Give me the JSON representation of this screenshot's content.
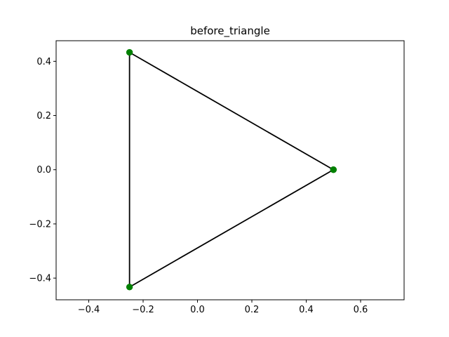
{
  "chart_data": {
    "type": "line",
    "title": "before_triangle",
    "xlabel": "",
    "ylabel": "",
    "xlim": [
      -0.52,
      0.76
    ],
    "ylim": [
      -0.48,
      0.476
    ],
    "xticks": [
      {
        "value": -0.4,
        "label": "−0.4"
      },
      {
        "value": -0.2,
        "label": "−0.2"
      },
      {
        "value": 0.0,
        "label": "0.0"
      },
      {
        "value": 0.2,
        "label": "0.2"
      },
      {
        "value": 0.4,
        "label": "0.4"
      },
      {
        "value": 0.6,
        "label": "0.6"
      }
    ],
    "yticks": [
      {
        "value": -0.4,
        "label": "−0.4"
      },
      {
        "value": -0.2,
        "label": "−0.2"
      },
      {
        "value": 0.0,
        "label": "0.0"
      },
      {
        "value": 0.2,
        "label": "0.2"
      },
      {
        "value": 0.4,
        "label": "0.4"
      }
    ],
    "grid": false,
    "series": [
      {
        "x": [
          0.5,
          -0.25,
          -0.25,
          0.5
        ],
        "y": [
          0.0,
          0.433,
          -0.433,
          0.0
        ],
        "line_color": "#000000",
        "marker_color": "#008000",
        "marker": "circle"
      }
    ]
  }
}
